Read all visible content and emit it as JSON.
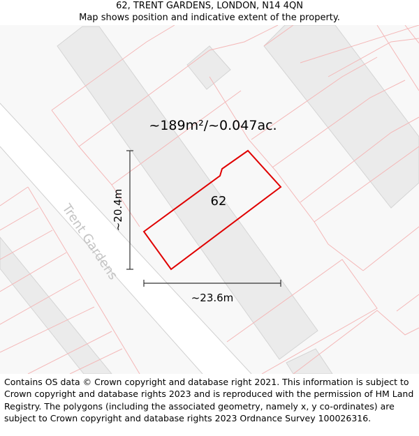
{
  "header": {
    "title": "62, TRENT GARDENS, LONDON, N14 4QN",
    "subtitle": "Map shows position and indicative extent of the property."
  },
  "map": {
    "area_label": "~189m²/~0.047ac.",
    "plot_number": "62",
    "street_name": "Trent Gardens",
    "height_label": "~20.4m",
    "width_label": "~23.6m",
    "colors": {
      "property_outline": "#e00000",
      "parcel_lines": "#f4b7b7",
      "building_fill": "#ebebeb",
      "road_edges": "#cfcfcf",
      "dimension_lines": "#333333"
    }
  },
  "footer": {
    "attribution": "Contains OS data © Crown copyright and database right 2021. This information is subject to Crown copyright and database rights 2023 and is reproduced with the permission of HM Land Registry. The polygons (including the associated geometry, namely x, y co-ordinates) are subject to Crown copyright and database rights 2023 Ordnance Survey 100026316."
  }
}
